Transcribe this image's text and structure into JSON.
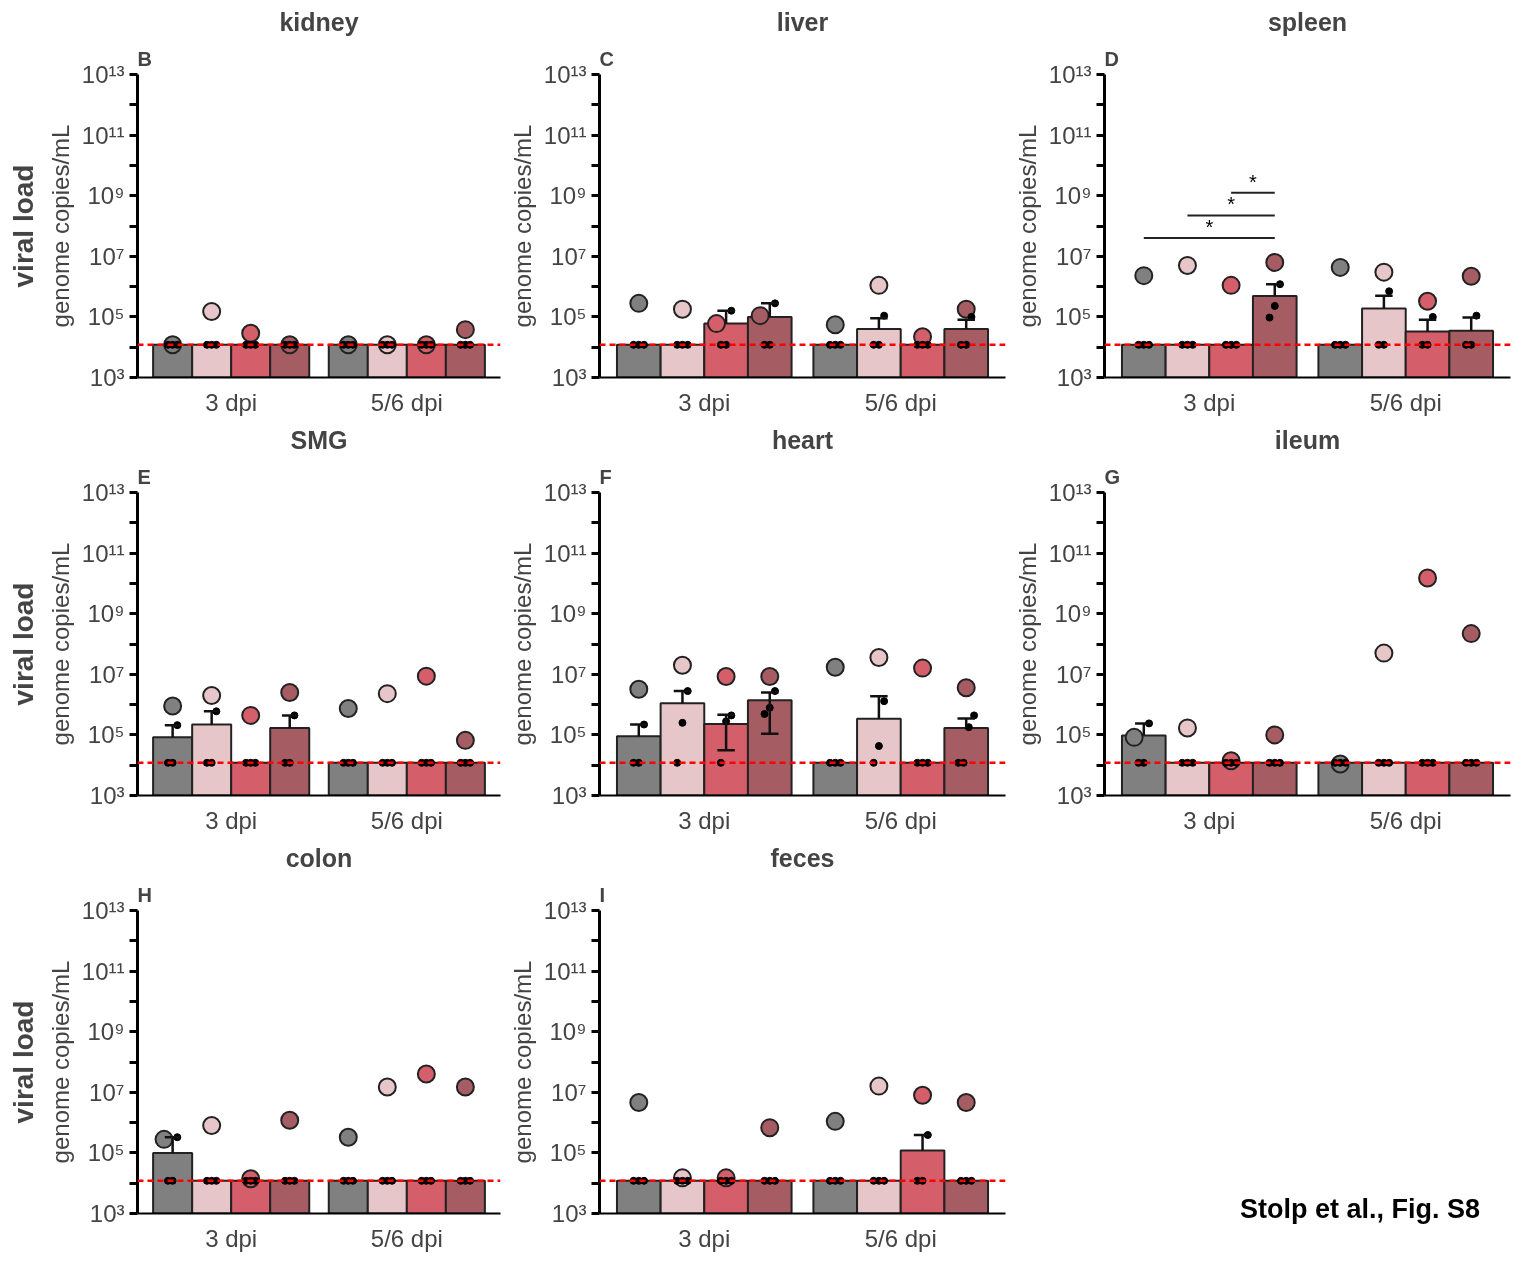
{
  "chart_data": [
    {
      "type": "bar",
      "title": "kidney",
      "ylabel": "genome copies/mL",
      "categories": [
        null,
        null,
        null,
        null,
        null,
        null,
        null,
        null
      ],
      "annotations": [
        "3 dpi",
        "5/6 dpi",
        "B",
        "viral load"
      ],
      "log": true,
      "ylim": [
        1000,
        10000000000000.0
      ],
      "yticks": [
        {
          "value": 1000,
          "label": "10³"
        },
        {
          "value": 10000,
          "label": null
        },
        {
          "value": 100000,
          "label": "10⁵"
        },
        {
          "value": 1000000,
          "label": null
        },
        {
          "value": 10000000,
          "label": "10⁷"
        },
        {
          "value": 100000000,
          "label": null
        },
        {
          "value": 1000000000,
          "label": "10⁹"
        },
        {
          "value": 10000000000,
          "label": null
        },
        {
          "value": 100000000000,
          "label": "10¹¹"
        },
        {
          "value": 1000000000000,
          "label": null
        },
        {
          "value": 10000000000000.0,
          "label": "10¹³"
        }
      ],
      "ref_lines": [
        {
          "axis": "y",
          "value": 12000,
          "color": "#ff0000",
          "line_style": "dashed"
        }
      ],
      "marker": "circle",
      "series": [
        {
          "type": "bar",
          "colors": [
            "#808080",
            "#e6c6c8",
            "#d45f6a",
            "#a65c63",
            "#808080",
            "#e6c6c8",
            "#d45f6a",
            "#a65c63"
          ],
          "values": [
            12000,
            12000,
            12000,
            12000,
            12000,
            12000,
            12000,
            12000
          ]
        },
        {
          "type": "scatter",
          "color": "#000000",
          "values": [
            12000,
            12000,
            12000,
            12000,
            12000,
            12000,
            12000,
            12000
          ]
        },
        {
          "type": "scatter",
          "color": "#000000",
          "values": [
            12000,
            12000,
            12000,
            12000,
            12000,
            12000,
            12000,
            12000
          ]
        },
        {
          "type": "scatter",
          "color": "#000000",
          "values": [
            12000,
            12000,
            12000,
            12000,
            12000,
            12000,
            12000,
            12000
          ]
        },
        {
          "type": "scatter",
          "colors": [
            "#808080",
            "#e6c6c8",
            "#d45f6a",
            "#a65c63",
            "#808080",
            "#e6c6c8",
            "#d45f6a",
            "#a65c63"
          ],
          "values": [
            12000,
            150000,
            29000,
            12000,
            12000,
            12000,
            12000,
            38000
          ]
        }
      ]
    },
    {
      "type": "bar",
      "title": "liver",
      "ylabel": "genome copies/mL",
      "categories": [
        null,
        null,
        null,
        null,
        null,
        null,
        null,
        null
      ],
      "annotations": [
        "3 dpi",
        "5/6 dpi",
        "C"
      ],
      "log": true,
      "ylim": [
        1000,
        10000000000000.0
      ],
      "yticks": [
        {
          "value": 1000,
          "label": "10³"
        },
        {
          "value": 10000,
          "label": null
        },
        {
          "value": 100000,
          "label": "10⁵"
        },
        {
          "value": 1000000,
          "label": null
        },
        {
          "value": 10000000,
          "label": "10⁷"
        },
        {
          "value": 100000000,
          "label": null
        },
        {
          "value": 1000000000,
          "label": "10⁹"
        },
        {
          "value": 10000000000,
          "label": null
        },
        {
          "value": 100000000000,
          "label": "10¹¹"
        },
        {
          "value": 1000000000000,
          "label": null
        },
        {
          "value": 10000000000000.0,
          "label": "10¹³"
        }
      ],
      "ref_lines": [
        {
          "axis": "y",
          "value": 12000,
          "color": "#ff0000",
          "line_style": "dashed"
        }
      ],
      "marker": "circle",
      "series": [
        {
          "type": "bar",
          "colors": [
            "#808080",
            "#e6c6c8",
            "#d45f6a",
            "#a65c63",
            "#808080",
            "#e6c6c8",
            "#d45f6a",
            "#a65c63"
          ],
          "values": [
            12000,
            12000,
            60000,
            100000,
            12000,
            40000,
            12000,
            40000
          ],
          "errors": [
            null,
            null,
            [
              60000,
              160000
            ],
            [
              100000,
              280000
            ],
            null,
            [
              40000,
              90000
            ],
            null,
            [
              40000,
              80000
            ]
          ]
        },
        {
          "type": "scatter",
          "color": "#000000",
          "values": [
            12000,
            12000,
            12000,
            12000,
            12000,
            12000,
            12000,
            12000
          ]
        },
        {
          "type": "scatter",
          "color": "#000000",
          "values": [
            12000,
            12000,
            12000,
            12000,
            12000,
            12000,
            12000,
            12000
          ]
        },
        {
          "type": "scatter",
          "color": "#000000",
          "values": [
            12000,
            12000,
            160000,
            280000,
            12000,
            110000,
            12000,
            100000
          ]
        },
        {
          "type": "scatter",
          "colors": [
            "#808080",
            "#e6c6c8",
            "#d45f6a",
            "#a65c63",
            "#808080",
            "#e6c6c8",
            "#d45f6a",
            "#a65c63"
          ],
          "values": [
            280000,
            180000,
            60000,
            110000,
            55000,
            1100000,
            22000,
            180000
          ]
        }
      ]
    },
    {
      "type": "bar",
      "title": "spleen",
      "ylabel": "genome copies/mL",
      "categories": [
        null,
        null,
        null,
        null,
        null,
        null,
        null,
        null
      ],
      "annotations": [
        "3 dpi",
        "5/6 dpi",
        "D",
        "*",
        "*",
        "*"
      ],
      "log": true,
      "ylim": [
        1000,
        10000000000000.0
      ],
      "yticks": [
        {
          "value": 1000,
          "label": "10³"
        },
        {
          "value": 10000,
          "label": null
        },
        {
          "value": 100000,
          "label": "10⁵"
        },
        {
          "value": 1000000,
          "label": null
        },
        {
          "value": 10000000,
          "label": "10⁷"
        },
        {
          "value": 100000000,
          "label": null
        },
        {
          "value": 1000000000,
          "label": "10⁹"
        },
        {
          "value": 10000000000,
          "label": null
        },
        {
          "value": 100000000000,
          "label": "10¹¹"
        },
        {
          "value": 1000000000000,
          "label": null
        },
        {
          "value": 10000000000000.0,
          "label": "10¹³"
        }
      ],
      "ref_lines": [
        {
          "axis": "y",
          "value": 12000,
          "color": "#ff0000",
          "line_style": "dashed"
        }
      ],
      "marker": "circle",
      "series": [
        {
          "type": "bar",
          "colors": [
            "#808080",
            "#e6c6c8",
            "#d45f6a",
            "#a65c63",
            "#808080",
            "#e6c6c8",
            "#d45f6a",
            "#a65c63"
          ],
          "values": [
            12000,
            12000,
            12000,
            490000,
            12000,
            190000,
            33000,
            35000
          ],
          "errors": [
            null,
            null,
            null,
            [
              490000,
              1200000
            ],
            null,
            [
              190000,
              500000
            ],
            [
              33000,
              80000
            ],
            [
              35000,
              96000
            ]
          ]
        },
        {
          "type": "scatter",
          "color": "#000000",
          "values": [
            12000,
            12000,
            12000,
            95000,
            12000,
            12000,
            12000,
            12000
          ]
        },
        {
          "type": "scatter",
          "color": "#000000",
          "values": [
            12000,
            12000,
            12000,
            230000,
            12000,
            12000,
            12000,
            12000
          ]
        },
        {
          "type": "scatter",
          "color": "#000000",
          "values": [
            12000,
            12000,
            12000,
            1200000,
            12000,
            700000,
            100000,
            110000
          ]
        },
        {
          "type": "scatter",
          "colors": [
            "#808080",
            "#e6c6c8",
            "#d45f6a",
            "#a65c63",
            "#808080",
            "#e6c6c8",
            "#d45f6a",
            "#a65c63"
          ],
          "values": [
            2300000,
            5000000,
            1100000,
            6300000,
            4300000,
            3000000,
            330000,
            2200000
          ]
        }
      ]
    },
    {
      "type": "bar",
      "title": "SMG",
      "ylabel": "genome copies/mL",
      "categories": [
        null,
        null,
        null,
        null,
        null,
        null,
        null,
        null
      ],
      "annotations": [
        "3 dpi",
        "5/6 dpi",
        "E",
        "viral load"
      ],
      "log": true,
      "ylim": [
        1000,
        10000000000000.0
      ],
      "yticks": [
        {
          "value": 1000,
          "label": "10³"
        },
        {
          "value": 10000,
          "label": null
        },
        {
          "value": 100000,
          "label": "10⁵"
        },
        {
          "value": 1000000,
          "label": null
        },
        {
          "value": 10000000,
          "label": "10⁷"
        },
        {
          "value": 100000000,
          "label": null
        },
        {
          "value": 1000000000,
          "label": "10⁹"
        },
        {
          "value": 10000000000,
          "label": null
        },
        {
          "value": 100000000000,
          "label": "10¹¹"
        },
        {
          "value": 1000000000000,
          "label": null
        },
        {
          "value": 10000000000000.0,
          "label": "10¹³"
        }
      ],
      "ref_lines": [
        {
          "axis": "y",
          "value": 12000,
          "color": "#ff0000",
          "line_style": "dashed"
        }
      ],
      "marker": "circle",
      "series": [
        {
          "type": "bar",
          "colors": [
            "#808080",
            "#e6c6c8",
            "#d45f6a",
            "#a65c63",
            "#808080",
            "#e6c6c8",
            "#d45f6a",
            "#a65c63"
          ],
          "values": [
            83000,
            220000,
            12000,
            170000,
            12000,
            12000,
            12000,
            12000
          ],
          "errors": [
            [
              83000,
              210000
            ],
            [
              220000,
              600000
            ],
            null,
            [
              170000,
              440000
            ],
            null,
            null,
            null,
            null
          ]
        },
        {
          "type": "scatter",
          "color": "#000000",
          "values": [
            12000,
            12000,
            12000,
            12000,
            12000,
            12000,
            12000,
            12000
          ]
        },
        {
          "type": "scatter",
          "color": "#000000",
          "values": [
            12000,
            12000,
            12000,
            12000,
            12000,
            12000,
            12000,
            12000
          ]
        },
        {
          "type": "scatter",
          "color": "#000000",
          "values": [
            210000,
            600000,
            12000,
            440000,
            12000,
            12000,
            12000,
            12000
          ]
        },
        {
          "type": "scatter",
          "colors": [
            "#808080",
            "#e6c6c8",
            "#d45f6a",
            "#a65c63",
            "#808080",
            "#e6c6c8",
            "#d45f6a",
            "#a65c63"
          ],
          "values": [
            900000,
            2000000,
            440000,
            2500000,
            740000,
            2300000,
            8700000,
            66000
          ]
        }
      ]
    },
    {
      "type": "bar",
      "title": "heart",
      "ylabel": "genome copies/mL",
      "categories": [
        null,
        null,
        null,
        null,
        null,
        null,
        null,
        null
      ],
      "annotations": [
        "3 dpi",
        "5/6 dpi",
        "F"
      ],
      "log": true,
      "ylim": [
        1000,
        10000000000000.0
      ],
      "yticks": [
        {
          "value": 1000,
          "label": "10³"
        },
        {
          "value": 10000,
          "label": null
        },
        {
          "value": 100000,
          "label": "10⁵"
        },
        {
          "value": 1000000,
          "label": null
        },
        {
          "value": 10000000,
          "label": "10⁷"
        },
        {
          "value": 100000000,
          "label": null
        },
        {
          "value": 1000000000,
          "label": "10⁹"
        },
        {
          "value": 10000000000,
          "label": null
        },
        {
          "value": 100000000000,
          "label": "10¹¹"
        },
        {
          "value": 1000000000000,
          "label": null
        },
        {
          "value": 10000000000000.0,
          "label": "10¹³"
        }
      ],
      "ref_lines": [
        {
          "axis": "y",
          "value": 12000,
          "color": "#ff0000",
          "line_style": "dashed"
        }
      ],
      "marker": "circle",
      "series": [
        {
          "type": "bar",
          "colors": [
            "#808080",
            "#e6c6c8",
            "#d45f6a",
            "#a65c63",
            "#808080",
            "#e6c6c8",
            "#d45f6a",
            "#a65c63"
          ],
          "values": [
            90000,
            1100000,
            230000,
            1400000,
            12000,
            340000,
            12000,
            170000
          ],
          "errors": [
            [
              90000,
              220000
            ],
            [
              1100000,
              2800000
            ],
            [
              31000,
              460000
            ],
            [
              110000,
              2500000
            ],
            null,
            [
              340000,
              1900000
            ],
            null,
            [
              170000,
              350000
            ]
          ]
        },
        {
          "type": "scatter",
          "color": "#000000",
          "values": [
            12000,
            12000,
            12000,
            490000,
            12000,
            12000,
            12000,
            12000
          ]
        },
        {
          "type": "scatter",
          "color": "#000000",
          "values": [
            12000,
            250000,
            280000,
            790000,
            12000,
            43000,
            12000,
            12000
          ]
        },
        {
          "type": "scatter",
          "color": "#000000",
          "values": [
            220000,
            2800000,
            440000,
            2800000,
            12000,
            1300000,
            12000,
            180000
          ]
        },
        {
          "type": "scatter",
          "color": "#000000",
          "values": [
            null,
            null,
            null,
            null,
            null,
            null,
            null,
            440000
          ]
        },
        {
          "type": "scatter",
          "colors": [
            "#808080",
            "#e6c6c8",
            "#d45f6a",
            "#a65c63",
            "#808080",
            "#e6c6c8",
            "#d45f6a",
            "#a65c63"
          ],
          "values": [
            3200000,
            20000000,
            8500000,
            8500000,
            17000000,
            36000000,
            16000000,
            3600000
          ]
        }
      ]
    },
    {
      "type": "bar",
      "title": "ileum",
      "ylabel": "genome copies/mL",
      "categories": [
        null,
        null,
        null,
        null,
        null,
        null,
        null,
        null
      ],
      "annotations": [
        "3 dpi",
        "5/6 dpi",
        "G"
      ],
      "log": true,
      "ylim": [
        1000,
        10000000000000.0
      ],
      "yticks": [
        {
          "value": 1000,
          "label": "10³"
        },
        {
          "value": 10000,
          "label": null
        },
        {
          "value": 100000,
          "label": "10⁵"
        },
        {
          "value": 1000000,
          "label": null
        },
        {
          "value": 10000000,
          "label": "10⁷"
        },
        {
          "value": 100000000,
          "label": null
        },
        {
          "value": 1000000000,
          "label": "10⁹"
        },
        {
          "value": 10000000000,
          "label": null
        },
        {
          "value": 100000000000,
          "label": "10¹¹"
        },
        {
          "value": 1000000000000,
          "label": null
        },
        {
          "value": 10000000000000.0,
          "label": "10¹³"
        }
      ],
      "ref_lines": [
        {
          "axis": "y",
          "value": 12000,
          "color": "#ff0000",
          "line_style": "dashed"
        }
      ],
      "marker": "circle",
      "series": [
        {
          "type": "bar",
          "colors": [
            "#808080",
            "#e6c6c8",
            "#d45f6a",
            "#a65c63",
            "#808080",
            "#e6c6c8",
            "#d45f6a",
            "#a65c63"
          ],
          "values": [
            95000,
            12000,
            12000,
            12000,
            12000,
            12000,
            12000,
            12000
          ],
          "errors": [
            [
              95000,
              240000
            ],
            null,
            null,
            null,
            null,
            null,
            null,
            null
          ]
        },
        {
          "type": "scatter",
          "color": "#000000",
          "values": [
            12000,
            12000,
            12000,
            12000,
            12000,
            12000,
            12000,
            12000
          ]
        },
        {
          "type": "scatter",
          "color": "#000000",
          "values": [
            12000,
            12000,
            12000,
            12000,
            12000,
            12000,
            12000,
            12000
          ]
        },
        {
          "type": "scatter",
          "color": "#000000",
          "values": [
            240000,
            12000,
            12000,
            12000,
            12000,
            12000,
            12000,
            12000
          ]
        },
        {
          "type": "scatter",
          "colors": [
            "#808080",
            "#e6c6c8",
            "#d45f6a",
            "#a65c63",
            "#808080",
            "#e6c6c8",
            "#d45f6a",
            "#a65c63"
          ],
          "values": [
            83000,
            170000,
            14000,
            100000,
            11000,
            50000000,
            15000000000,
            220000000
          ]
        }
      ]
    },
    {
      "type": "bar",
      "title": "colon",
      "ylabel": "genome copies/mL",
      "categories": [
        null,
        null,
        null,
        null,
        null,
        null,
        null,
        null
      ],
      "annotations": [
        "3 dpi",
        "5/6 dpi",
        "H",
        "viral load"
      ],
      "log": true,
      "ylim": [
        1000,
        10000000000000.0
      ],
      "yticks": [
        {
          "value": 1000,
          "label": "10³"
        },
        {
          "value": 10000,
          "label": null
        },
        {
          "value": 100000,
          "label": "10⁵"
        },
        {
          "value": 1000000,
          "label": null
        },
        {
          "value": 10000000,
          "label": "10⁷"
        },
        {
          "value": 100000000,
          "label": null
        },
        {
          "value": 1000000000,
          "label": "10⁹"
        },
        {
          "value": 10000000000,
          "label": null
        },
        {
          "value": 100000000000,
          "label": "10¹¹"
        },
        {
          "value": 1000000000000,
          "label": null
        },
        {
          "value": 10000000000000.0,
          "label": "10¹³"
        }
      ],
      "ref_lines": [
        {
          "axis": "y",
          "value": 12000,
          "color": "#ff0000",
          "line_style": "dashed"
        }
      ],
      "marker": "circle",
      "series": [
        {
          "type": "bar",
          "colors": [
            "#808080",
            "#e6c6c8",
            "#d45f6a",
            "#a65c63",
            "#808080",
            "#e6c6c8",
            "#d45f6a",
            "#a65c63"
          ],
          "values": [
            100000,
            12000,
            12000,
            12000,
            12000,
            12000,
            12000,
            12000
          ],
          "errors": [
            [
              100000,
              330000
            ],
            null,
            null,
            null,
            null,
            null,
            null,
            null
          ]
        },
        {
          "type": "scatter",
          "color": "#000000",
          "values": [
            12000,
            12000,
            12000,
            12000,
            12000,
            12000,
            12000,
            12000
          ]
        },
        {
          "type": "scatter",
          "color": "#000000",
          "values": [
            12000,
            12000,
            12000,
            12000,
            12000,
            12000,
            12000,
            12000
          ]
        },
        {
          "type": "scatter",
          "color": "#000000",
          "values": [
            330000,
            12000,
            12000,
            12000,
            12000,
            12000,
            12000,
            12000
          ]
        },
        {
          "type": "scatter",
          "colors": [
            "#808080",
            "#e6c6c8",
            "#d45f6a",
            "#a65c63",
            "#808080",
            "#e6c6c8",
            "#d45f6a",
            "#a65c63"
          ],
          "values": [
            280000,
            800000,
            14000,
            1200000,
            330000,
            15000000,
            40000000,
            15000000
          ]
        }
      ]
    },
    {
      "type": "bar",
      "title": "feces",
      "ylabel": "genome copies/mL",
      "categories": [
        null,
        null,
        null,
        null,
        null,
        null,
        null,
        null
      ],
      "annotations": [
        "3 dpi",
        "5/6 dpi",
        "I"
      ],
      "log": true,
      "ylim": [
        1000,
        10000000000000.0
      ],
      "yticks": [
        {
          "value": 1000,
          "label": "10³"
        },
        {
          "value": 10000,
          "label": null
        },
        {
          "value": 100000,
          "label": "10⁵"
        },
        {
          "value": 1000000,
          "label": null
        },
        {
          "value": 10000000,
          "label": "10⁷"
        },
        {
          "value": 100000000,
          "label": null
        },
        {
          "value": 1000000000,
          "label": "10⁹"
        },
        {
          "value": 10000000000,
          "label": null
        },
        {
          "value": 100000000000,
          "label": "10¹¹"
        },
        {
          "value": 1000000000000,
          "label": null
        },
        {
          "value": 10000000000000.0,
          "label": "10¹³"
        }
      ],
      "ref_lines": [
        {
          "axis": "y",
          "value": 12000,
          "color": "#ff0000",
          "line_style": "dashed"
        }
      ],
      "marker": "circle",
      "series": [
        {
          "type": "bar",
          "colors": [
            "#808080",
            "#e6c6c8",
            "#d45f6a",
            "#a65c63",
            "#808080",
            "#e6c6c8",
            "#d45f6a",
            "#a65c63"
          ],
          "values": [
            12000,
            12000,
            12000,
            12000,
            12000,
            12000,
            120000,
            12000
          ],
          "errors": [
            null,
            null,
            null,
            null,
            null,
            null,
            [
              120000,
              390000
            ],
            null
          ]
        },
        {
          "type": "scatter",
          "color": "#000000",
          "values": [
            12000,
            12000,
            12000,
            12000,
            12000,
            12000,
            12000,
            12000
          ]
        },
        {
          "type": "scatter",
          "color": "#000000",
          "values": [
            12000,
            12000,
            12000,
            12000,
            12000,
            12000,
            12000,
            12000
          ]
        },
        {
          "type": "scatter",
          "color": "#000000",
          "values": [
            12000,
            12000,
            12000,
            12000,
            12000,
            12000,
            390000,
            12000
          ]
        },
        {
          "type": "scatter",
          "colors": [
            "#808080",
            "#e6c6c8",
            "#d45f6a",
            "#a65c63",
            "#808080",
            "#e6c6c8",
            "#d45f6a",
            "#a65c63"
          ],
          "values": [
            4600000,
            15000,
            15000,
            680000,
            1100000,
            16000000,
            8000000,
            4600000
          ]
        }
      ]
    },
    {
      "type": "other",
      "annotations": [
        "Stolp et al., Fig. S8"
      ]
    }
  ]
}
